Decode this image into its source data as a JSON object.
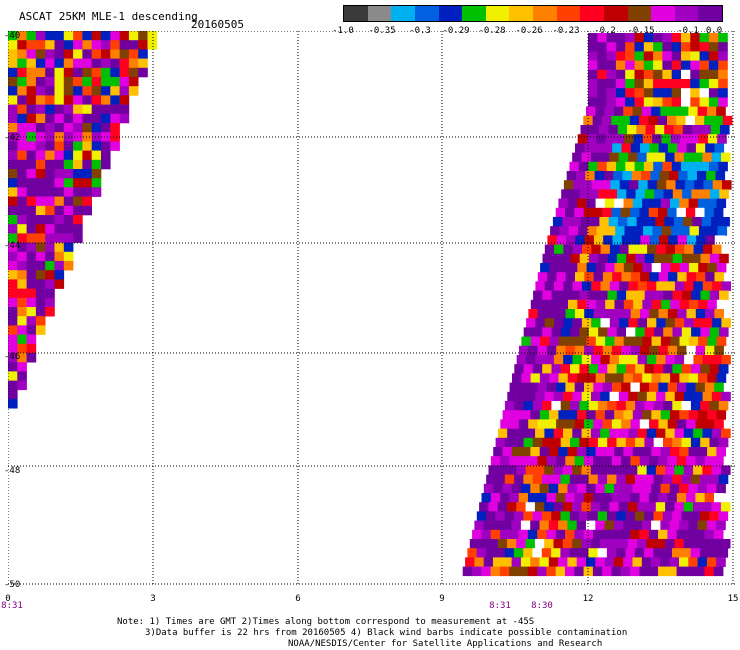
{
  "header": {
    "title": "ASCAT 25KM MLE-1 descending",
    "date": "20160505"
  },
  "colorbar": {
    "colors": [
      "#3a3a3a",
      "#8a8a8a",
      "#00b0f0",
      "#0060e0",
      "#0020c0",
      "#00c000",
      "#f0f000",
      "#ffc000",
      "#ff8000",
      "#ff4000",
      "#ff0020",
      "#c00000",
      "#804000",
      "#e000e0",
      "#a000c0",
      "#7000a0"
    ],
    "labels": [
      "-1.0",
      "-0.35",
      "-0.3",
      "-0.29",
      "-0.28",
      "-0.26",
      "-0.23",
      "-0.2",
      "-0.15",
      "-0.1",
      "0.0"
    ]
  },
  "axes": {
    "lat_labels": [
      "-40",
      "-42",
      "-44",
      "-46",
      "-48",
      "-50"
    ],
    "x_labels": [
      "0",
      "3",
      "6",
      "9",
      "12",
      "15"
    ],
    "time_labels": [
      "8:31",
      "8:31",
      "8:30"
    ]
  },
  "notes": {
    "line1": "Note: 1) Times are GMT 2)Times along bottom correspond to measurement at -45S",
    "line2": "3)Data buffer is 22 hrs from 20160505 4) Black wind barbs indicate possible contamination",
    "line3": "NOAA/NESDIS/Center for Satellite Applications and Research"
  }
}
